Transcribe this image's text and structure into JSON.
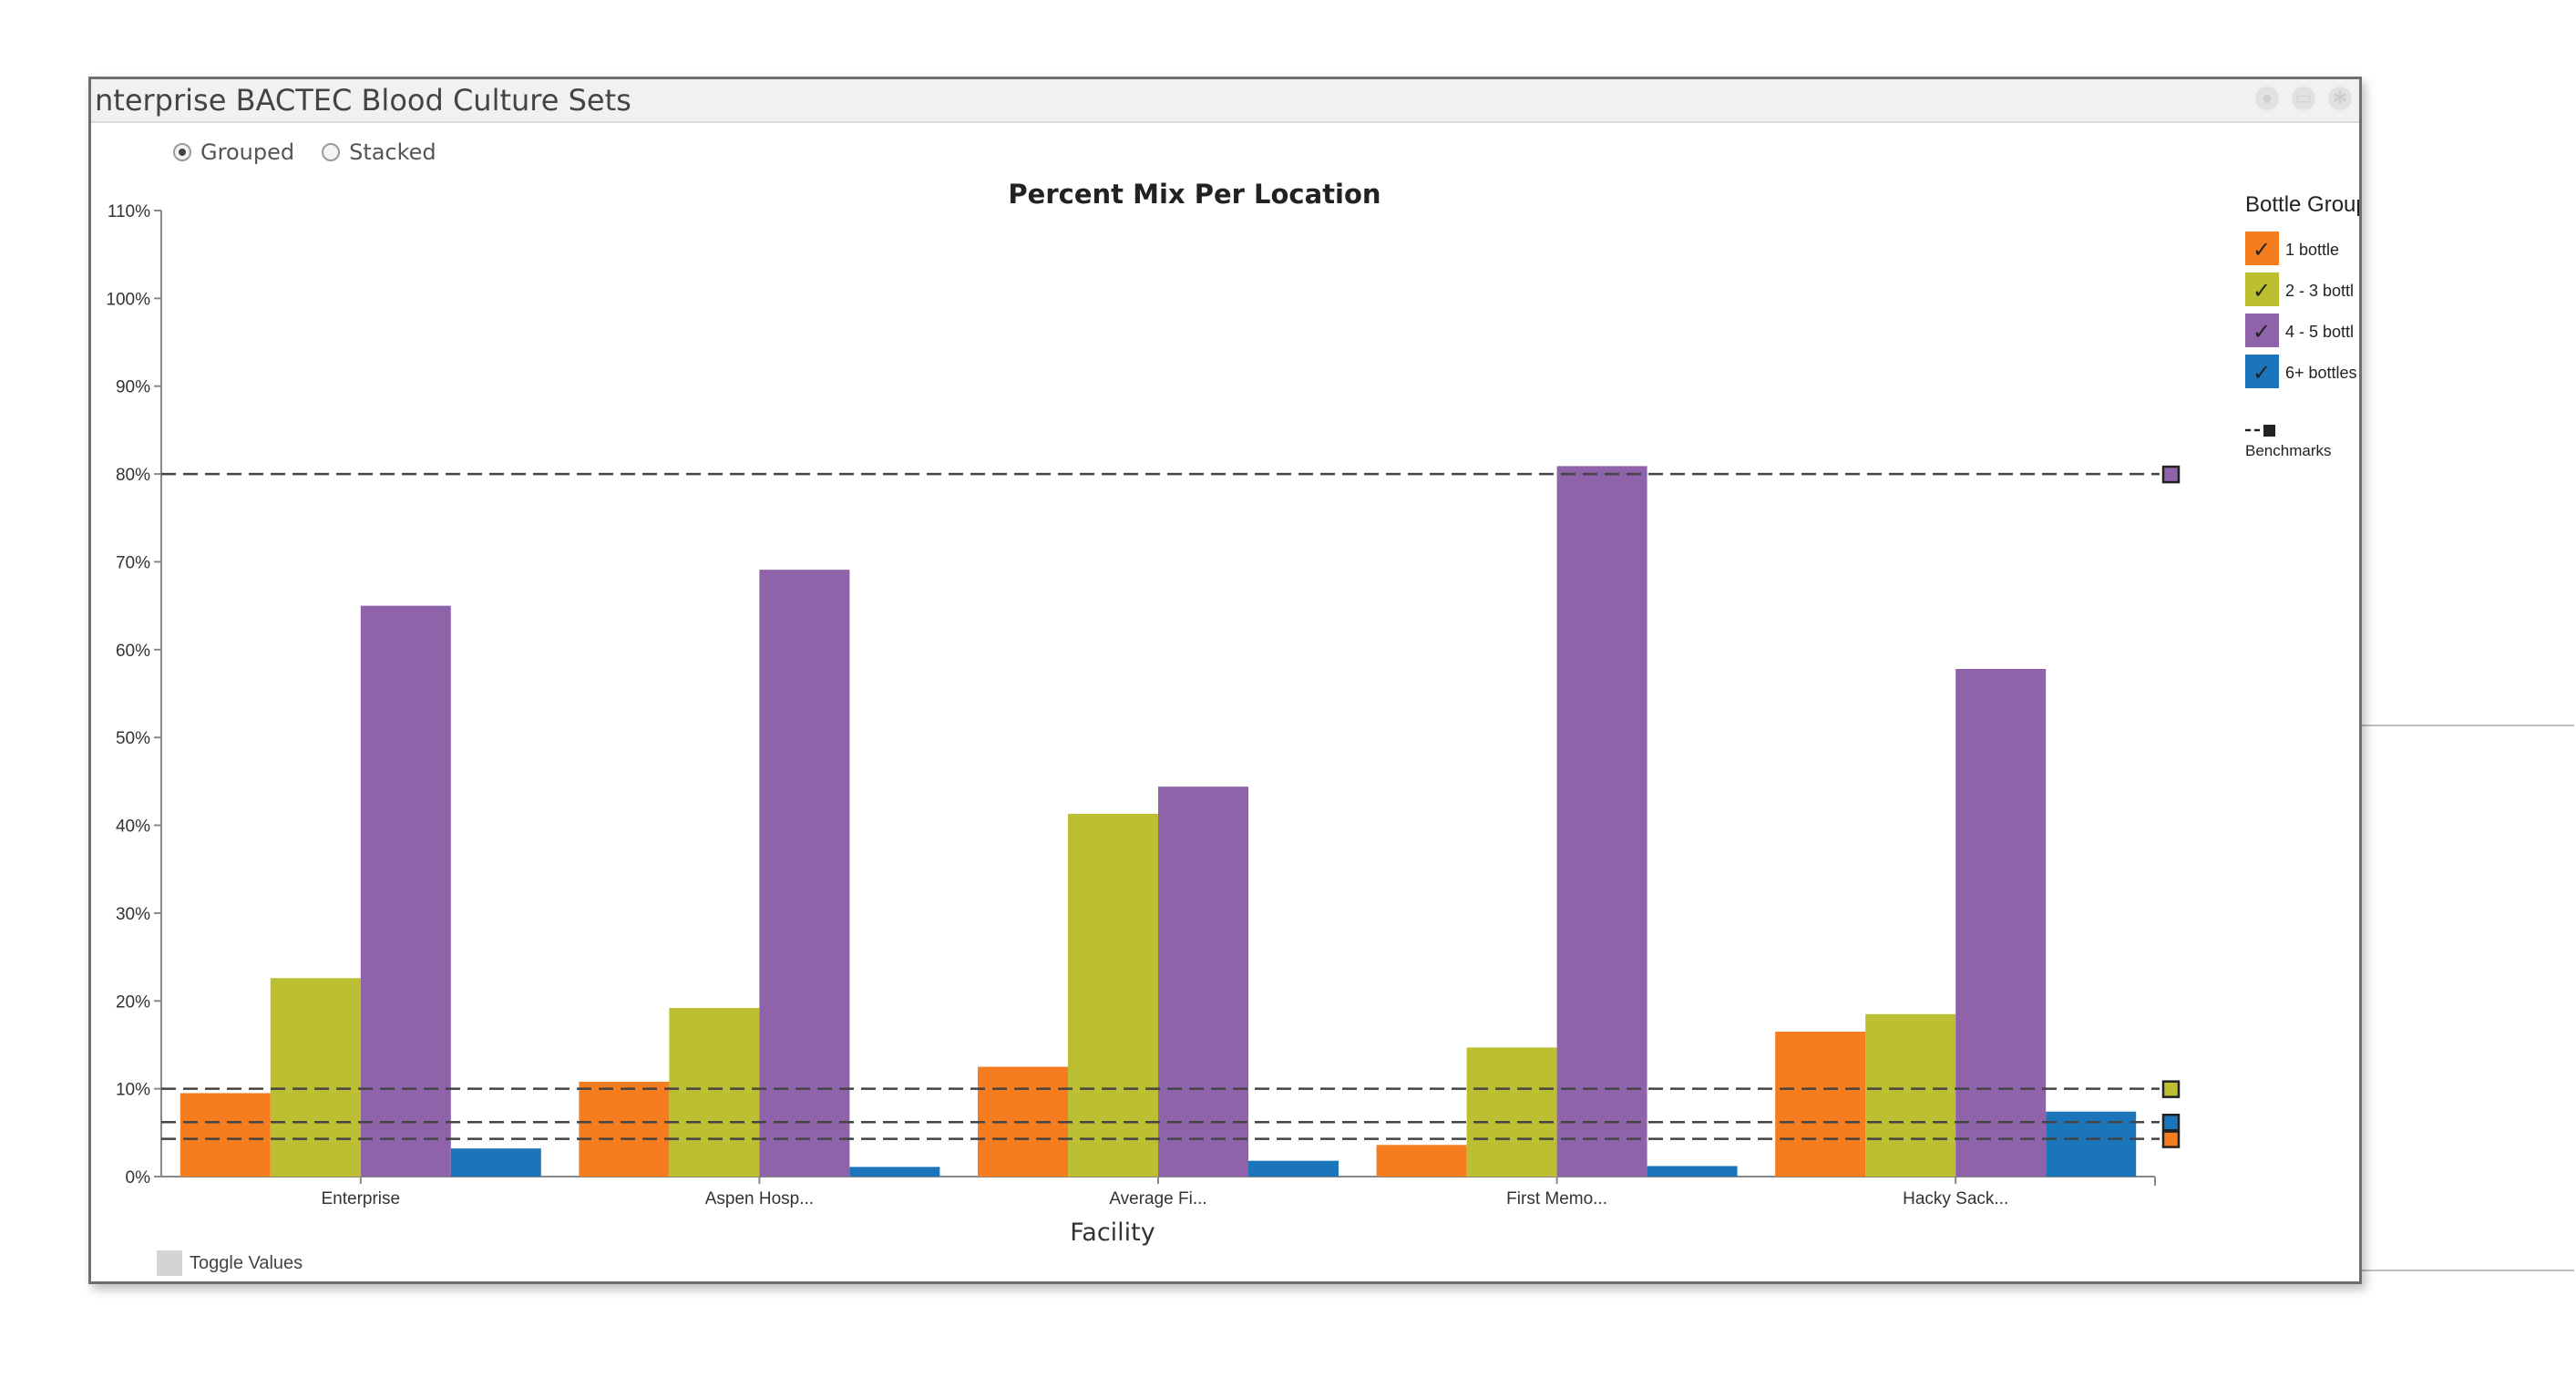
{
  "panel": {
    "title": "nterprise BACTEC Blood Culture Sets",
    "icons": [
      "info-icon",
      "print-icon",
      "gear-icon"
    ]
  },
  "mode": {
    "options": [
      "Grouped",
      "Stacked"
    ],
    "selected": "Grouped"
  },
  "toggle_values_label": "Toggle Values",
  "colors": {
    "1 bottle": "#f57d1f",
    "2 - 3 bottles": "#bcbf32",
    "4 - 5 bottles": "#8e63aa",
    "6+ bottles": "#1b75bb"
  },
  "chart_data": {
    "type": "bar",
    "title": "Percent Mix Per Location",
    "xlabel": "Facility",
    "ylabel": "",
    "ylim": [
      0,
      110
    ],
    "yticks": [
      "0%",
      "10%",
      "20%",
      "30%",
      "40%",
      "50%",
      "60%",
      "70%",
      "80%",
      "90%",
      "100%",
      "110%"
    ],
    "categories": [
      "Enterprise",
      "Aspen Hosp...",
      "Average Fi...",
      "First Memo...",
      "Hacky Sack..."
    ],
    "series": [
      {
        "name": "1 bottle",
        "values": [
          9.5,
          10.8,
          12.5,
          3.6,
          16.5
        ]
      },
      {
        "name": "2 - 3 bottl",
        "values": [
          22.6,
          19.2,
          41.3,
          14.7,
          18.5
        ]
      },
      {
        "name": "4 - 5 bottl",
        "values": [
          65.0,
          69.1,
          44.4,
          80.9,
          57.8
        ]
      },
      {
        "name": "6+ bottles",
        "values": [
          3.2,
          1.1,
          1.8,
          1.2,
          7.4
        ]
      }
    ],
    "legend": {
      "title": "Bottle Group",
      "position": "right"
    },
    "benchmarks": {
      "label": "Benchmarks",
      "lines": [
        {
          "series": "4 - 5 bottl",
          "value": 80
        },
        {
          "series": "2 - 3 bottl",
          "value": 10
        },
        {
          "series": "6+ bottles",
          "value": 6.2
        },
        {
          "series": "1 bottle",
          "value": 4.3
        }
      ]
    }
  }
}
